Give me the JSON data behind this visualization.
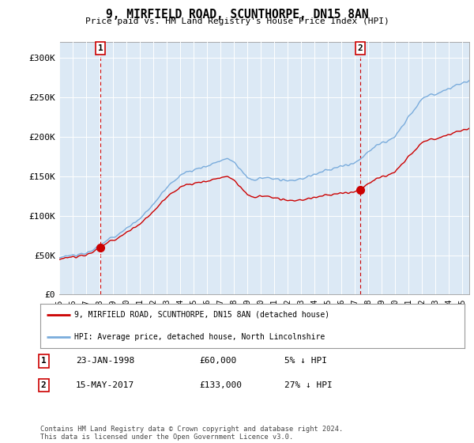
{
  "title": "9, MIRFIELD ROAD, SCUNTHORPE, DN15 8AN",
  "subtitle": "Price paid vs. HM Land Registry's House Price Index (HPI)",
  "x_start": 1995.0,
  "x_end": 2025.5,
  "y_min": 0,
  "y_max": 320000,
  "y_ticks": [
    0,
    50000,
    100000,
    150000,
    200000,
    250000,
    300000
  ],
  "y_tick_labels": [
    "£0",
    "£50K",
    "£100K",
    "£150K",
    "£200K",
    "£250K",
    "£300K"
  ],
  "x_ticks": [
    1995,
    1996,
    1997,
    1998,
    1999,
    2000,
    2001,
    2002,
    2003,
    2004,
    2005,
    2006,
    2007,
    2008,
    2009,
    2010,
    2011,
    2012,
    2013,
    2014,
    2015,
    2016,
    2017,
    2018,
    2019,
    2020,
    2021,
    2022,
    2023,
    2024,
    2025
  ],
  "sale1_x": 1998.07,
  "sale1_y": 60000,
  "sale2_x": 2017.38,
  "sale2_y": 133000,
  "line_color_red": "#cc0000",
  "line_color_blue": "#7aacdc",
  "vline_color": "#cc0000",
  "background_color": "#dce9f5",
  "legend_line1": "9, MIRFIELD ROAD, SCUNTHORPE, DN15 8AN (detached house)",
  "legend_line2": "HPI: Average price, detached house, North Lincolnshire",
  "sale1_date": "23-JAN-1998",
  "sale1_price": "£60,000",
  "sale1_hpi": "5% ↓ HPI",
  "sale2_date": "15-MAY-2017",
  "sale2_price": "£133,000",
  "sale2_hpi": "27% ↓ HPI",
  "footer": "Contains HM Land Registry data © Crown copyright and database right 2024.\nThis data is licensed under the Open Government Licence v3.0."
}
